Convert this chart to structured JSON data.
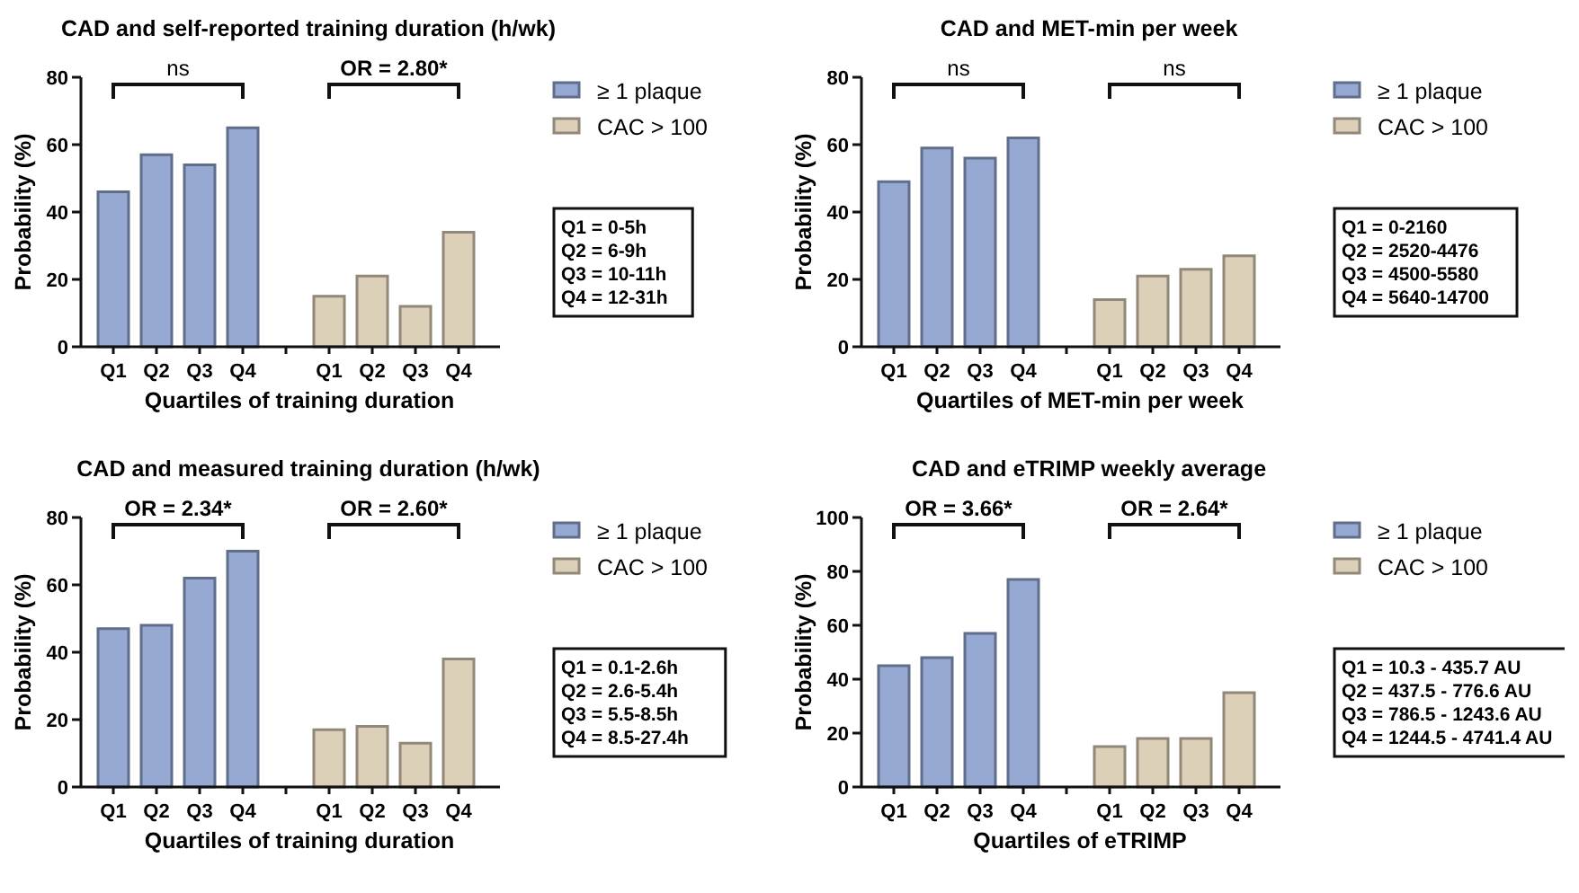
{
  "chart_data": [
    {
      "type": "bar",
      "title": "CAD and self-reported training duration (h/wk)",
      "xlabel": "Quartiles of training duration",
      "ylabel": "Probability (%)",
      "categories": [
        "Q1",
        "Q2",
        "Q3",
        "Q4",
        null,
        "Q1",
        "Q2",
        "Q3",
        "Q4"
      ],
      "series": [
        {
          "name": "≥ 1 plaque",
          "color": "#95a9d3",
          "values": [
            46,
            57,
            54,
            65,
            null,
            null,
            null,
            null,
            null
          ]
        },
        {
          "name": "CAC > 100",
          "color": "#ddd0b8",
          "values": [
            null,
            null,
            null,
            null,
            null,
            15,
            21,
            12,
            34
          ]
        }
      ],
      "ylim": [
        0,
        80
      ],
      "yticks": [
        0,
        20,
        40,
        60,
        80
      ],
      "legend": "right",
      "annotations": [
        "ns",
        "OR = 2.80*",
        "Q1 = 0-5h",
        "Q2 = 6-9h",
        "Q3 = 10-11h",
        "Q4 = 12-31h"
      ]
    },
    {
      "type": "bar",
      "title": "CAD and MET-min per week",
      "xlabel": "Quartiles of MET-min per week",
      "ylabel": "Probability (%)",
      "categories": [
        "Q1",
        "Q2",
        "Q3",
        "Q4",
        null,
        "Q1",
        "Q2",
        "Q3",
        "Q4"
      ],
      "series": [
        {
          "name": "≥ 1 plaque",
          "color": "#95a9d3",
          "values": [
            49,
            59,
            56,
            62,
            null,
            null,
            null,
            null,
            null
          ]
        },
        {
          "name": "CAC > 100",
          "color": "#ddd0b8",
          "values": [
            null,
            null,
            null,
            null,
            null,
            14,
            21,
            23,
            27
          ]
        }
      ],
      "ylim": [
        0,
        80
      ],
      "yticks": [
        0,
        20,
        40,
        60,
        80
      ],
      "legend": "right",
      "annotations": [
        "ns",
        "ns",
        "Q1 = 0-2160",
        "Q2 = 2520-4476",
        "Q3 = 4500-5580",
        "Q4 = 5640-14700"
      ]
    },
    {
      "type": "bar",
      "title": "CAD and measured training duration (h/wk)",
      "xlabel": "Quartiles of training duration",
      "ylabel": "Probability (%)",
      "categories": [
        "Q1",
        "Q2",
        "Q3",
        "Q4",
        null,
        "Q1",
        "Q2",
        "Q3",
        "Q4"
      ],
      "series": [
        {
          "name": "≥ 1 plaque",
          "color": "#95a9d3",
          "values": [
            47,
            48,
            62,
            70,
            null,
            null,
            null,
            null,
            null
          ]
        },
        {
          "name": "CAC > 100",
          "color": "#ddd0b8",
          "values": [
            null,
            null,
            null,
            null,
            null,
            17,
            18,
            13,
            38
          ]
        }
      ],
      "ylim": [
        0,
        80
      ],
      "yticks": [
        0,
        20,
        40,
        60,
        80
      ],
      "legend": "right",
      "annotations": [
        "OR = 2.34*",
        "OR = 2.60*",
        "Q1 = 0.1-2.6h",
        "Q2 = 2.6-5.4h",
        "Q3 = 5.5-8.5h",
        "Q4 = 8.5-27.4h"
      ]
    },
    {
      "type": "bar",
      "title": "CAD and eTRIMP weekly average",
      "xlabel": "Quartiles of eTRIMP",
      "ylabel": "Probability (%)",
      "categories": [
        "Q1",
        "Q2",
        "Q3",
        "Q4",
        null,
        "Q1",
        "Q2",
        "Q3",
        "Q4"
      ],
      "series": [
        {
          "name": "≥ 1 plaque",
          "color": "#95a9d3",
          "values": [
            45,
            48,
            57,
            77,
            null,
            null,
            null,
            null,
            null
          ]
        },
        {
          "name": "CAC > 100",
          "color": "#ddd0b8",
          "values": [
            null,
            null,
            null,
            null,
            null,
            15,
            18,
            18,
            35
          ]
        }
      ],
      "ylim": [
        0,
        100
      ],
      "yticks": [
        0,
        20,
        40,
        60,
        80,
        100
      ],
      "legend": "right",
      "annotations": [
        "OR = 3.66*",
        "OR = 2.64*",
        "Q1 = 10.3 - 435.7 AU",
        "Q2 = 437.5 - 776.6 AU",
        "Q3 = 786.5 - 1243.6 AU",
        "Q4 = 1244.5 - 4741.4 AU"
      ]
    }
  ]
}
